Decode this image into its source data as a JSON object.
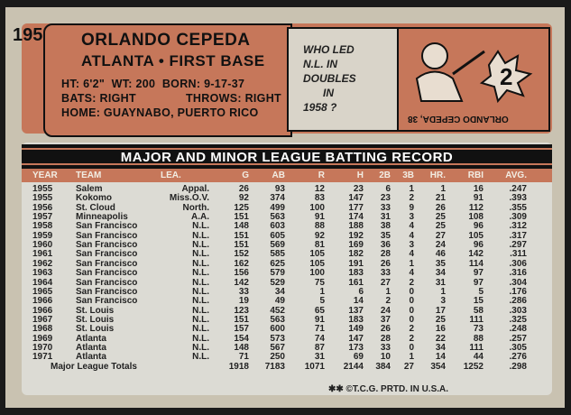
{
  "card": {
    "number": "195",
    "name": "ORLANDO CEPEDA",
    "team_position": "ATLANTA • FIRST BASE",
    "vitals_line1": "HT: 6'2\"  WT: 200  BORN: 9-17-37",
    "bats": "BATS: RIGHT",
    "throws": "THROWS: RIGHT",
    "home": "HOME: GUAYNABO, PUERTO RICO",
    "quiz": [
      "WHO LED",
      "N.L. IN",
      "DOUBLES",
      "IN",
      "1958 ?"
    ],
    "answer": "ORLANDO CEPEDA, 38",
    "record_title": "MAJOR AND MINOR LEAGUE BATTING RECORD",
    "footer": "✱✱ ©T.C.G. PRTD. IN U.S.A."
  },
  "table": {
    "columns": [
      "YEAR",
      "TEAM",
      "LEA.",
      "G",
      "AB",
      "R",
      "H",
      "2B",
      "3B",
      "HR.",
      "RBI",
      "AVG."
    ],
    "rows": [
      [
        "1955",
        "Salem",
        "Appal.",
        "26",
        "93",
        "12",
        "23",
        "6",
        "1",
        "1",
        "16",
        ".247"
      ],
      [
        "1955",
        "Kokomo",
        "Miss.O.V.",
        "92",
        "374",
        "83",
        "147",
        "23",
        "2",
        "21",
        "91",
        ".393"
      ],
      [
        "1956",
        "St. Cloud",
        "North.",
        "125",
        "499",
        "100",
        "177",
        "33",
        "9",
        "26",
        "112",
        ".355"
      ],
      [
        "1957",
        "Minneapolis",
        "A.A.",
        "151",
        "563",
        "91",
        "174",
        "31",
        "3",
        "25",
        "108",
        ".309"
      ],
      [
        "1958",
        "San Francisco",
        "N.L.",
        "148",
        "603",
        "88",
        "188",
        "38",
        "4",
        "25",
        "96",
        ".312"
      ],
      [
        "1959",
        "San Francisco",
        "N.L.",
        "151",
        "605",
        "92",
        "192",
        "35",
        "4",
        "27",
        "105",
        ".317"
      ],
      [
        "1960",
        "San Francisco",
        "N.L.",
        "151",
        "569",
        "81",
        "169",
        "36",
        "3",
        "24",
        "96",
        ".297"
      ],
      [
        "1961",
        "San Francisco",
        "N.L.",
        "152",
        "585",
        "105",
        "182",
        "28",
        "4",
        "46",
        "142",
        ".311"
      ],
      [
        "1962",
        "San Francisco",
        "N.L.",
        "162",
        "625",
        "105",
        "191",
        "26",
        "1",
        "35",
        "114",
        ".306"
      ],
      [
        "1963",
        "San Francisco",
        "N.L.",
        "156",
        "579",
        "100",
        "183",
        "33",
        "4",
        "34",
        "97",
        ".316"
      ],
      [
        "1964",
        "San Francisco",
        "N.L.",
        "142",
        "529",
        "75",
        "161",
        "27",
        "2",
        "31",
        "97",
        ".304"
      ],
      [
        "1965",
        "San Francisco",
        "N.L.",
        "33",
        "34",
        "1",
        "6",
        "1",
        "0",
        "1",
        "5",
        ".176"
      ],
      [
        "1966",
        "San Francisco",
        "N.L.",
        "19",
        "49",
        "5",
        "14",
        "2",
        "0",
        "3",
        "15",
        ".286"
      ],
      [
        "1966",
        "St. Louis",
        "N.L.",
        "123",
        "452",
        "65",
        "137",
        "24",
        "0",
        "17",
        "58",
        ".303"
      ],
      [
        "1967",
        "St. Louis",
        "N.L.",
        "151",
        "563",
        "91",
        "183",
        "37",
        "0",
        "25",
        "111",
        ".325"
      ],
      [
        "1968",
        "St. Louis",
        "N.L.",
        "157",
        "600",
        "71",
        "149",
        "26",
        "2",
        "16",
        "73",
        ".248"
      ],
      [
        "1969",
        "Atlanta",
        "N.L.",
        "154",
        "573",
        "74",
        "147",
        "28",
        "2",
        "22",
        "88",
        ".257"
      ],
      [
        "1970",
        "Atlanta",
        "N.L.",
        "148",
        "567",
        "87",
        "173",
        "33",
        "0",
        "34",
        "111",
        ".305"
      ],
      [
        "1971",
        "Atlanta",
        "N.L.",
        "71",
        "250",
        "31",
        "69",
        "10",
        "1",
        "14",
        "44",
        ".276"
      ]
    ],
    "totals_label": "Major League Totals",
    "totals": [
      "1918",
      "7183",
      "1071",
      "2144",
      "384",
      "27",
      "354",
      "1252",
      ".298"
    ]
  }
}
